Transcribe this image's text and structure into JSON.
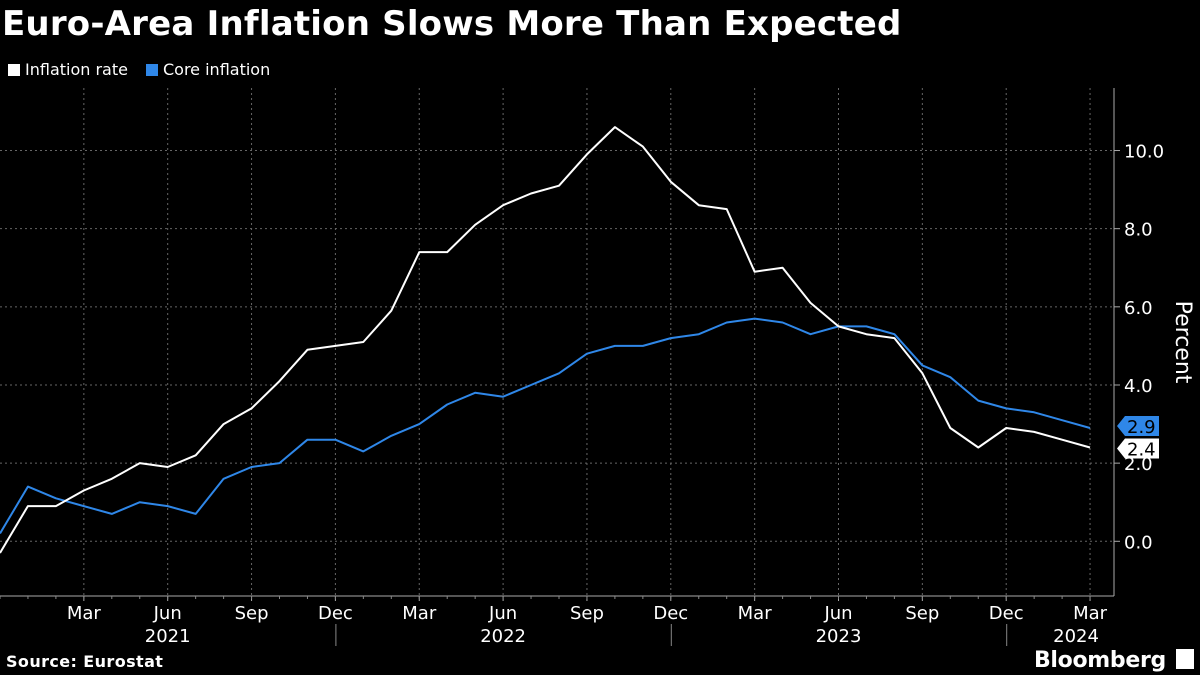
{
  "title": "Euro-Area Inflation Slows More Than Expected",
  "source": "Source: Eurostat",
  "brand": "Bloomberg",
  "chart_data": {
    "type": "line",
    "title": "Euro-Area Inflation Slows More Than Expected",
    "ylabel": "Percent",
    "xlabel": "",
    "ylim": [
      -1.4,
      11.6
    ],
    "yticks": [
      0.0,
      2.0,
      4.0,
      6.0,
      8.0,
      10.0
    ],
    "ytick_labels": [
      "0.0",
      "2.0",
      "4.0",
      "6.0",
      "8.0",
      "10.0"
    ],
    "grid": true,
    "legend": "top-left",
    "x": [
      "2020-12",
      "2021-01",
      "2021-02",
      "2021-03",
      "2021-04",
      "2021-05",
      "2021-06",
      "2021-07",
      "2021-08",
      "2021-09",
      "2021-10",
      "2021-11",
      "2021-12",
      "2022-01",
      "2022-02",
      "2022-03",
      "2022-04",
      "2022-05",
      "2022-06",
      "2022-07",
      "2022-08",
      "2022-09",
      "2022-10",
      "2022-11",
      "2022-12",
      "2023-01",
      "2023-02",
      "2023-03",
      "2023-04",
      "2023-05",
      "2023-06",
      "2023-07",
      "2023-08",
      "2023-09",
      "2023-10",
      "2023-11",
      "2023-12",
      "2024-01",
      "2024-02",
      "2024-03"
    ],
    "month_ticks": [
      {
        "index": 3,
        "label": "Mar"
      },
      {
        "index": 6,
        "label": "Jun"
      },
      {
        "index": 9,
        "label": "Sep"
      },
      {
        "index": 12,
        "label": "Dec"
      },
      {
        "index": 15,
        "label": "Mar"
      },
      {
        "index": 18,
        "label": "Jun"
      },
      {
        "index": 21,
        "label": "Sep"
      },
      {
        "index": 24,
        "label": "Dec"
      },
      {
        "index": 27,
        "label": "Mar"
      },
      {
        "index": 30,
        "label": "Jun"
      },
      {
        "index": 33,
        "label": "Sep"
      },
      {
        "index": 36,
        "label": "Dec"
      },
      {
        "index": 39,
        "label": "Mar"
      }
    ],
    "year_labels": [
      {
        "label": "2021",
        "center": 6
      },
      {
        "label": "2022",
        "center": 18
      },
      {
        "label": "2023",
        "center": 30
      },
      {
        "label": "2024",
        "center": 38.5
      }
    ],
    "year_dividers": [
      12,
      24,
      36
    ],
    "series": [
      {
        "name": "Inflation rate",
        "color": "#ffffff",
        "values": [
          -0.3,
          0.9,
          0.9,
          1.3,
          1.6,
          2.0,
          1.9,
          2.2,
          3.0,
          3.4,
          4.1,
          4.9,
          5.0,
          5.1,
          5.9,
          7.4,
          7.4,
          8.1,
          8.6,
          8.9,
          9.1,
          9.9,
          10.6,
          10.1,
          9.2,
          8.6,
          8.5,
          6.9,
          7.0,
          6.1,
          5.5,
          5.3,
          5.2,
          4.3,
          2.9,
          2.4,
          2.9,
          2.8,
          2.6,
          2.4
        ],
        "end_label": "2.4"
      },
      {
        "name": "Core inflation",
        "color": "#2f87e8",
        "values": [
          0.2,
          1.4,
          1.1,
          0.9,
          0.7,
          1.0,
          0.9,
          0.7,
          1.6,
          1.9,
          2.0,
          2.6,
          2.6,
          2.3,
          2.7,
          3.0,
          3.5,
          3.8,
          3.7,
          4.0,
          4.3,
          4.8,
          5.0,
          5.0,
          5.2,
          5.3,
          5.6,
          5.7,
          5.6,
          5.3,
          5.5,
          5.5,
          5.3,
          4.5,
          4.2,
          3.6,
          3.4,
          3.3,
          3.1,
          2.9
        ],
        "end_label": "2.9"
      }
    ]
  }
}
